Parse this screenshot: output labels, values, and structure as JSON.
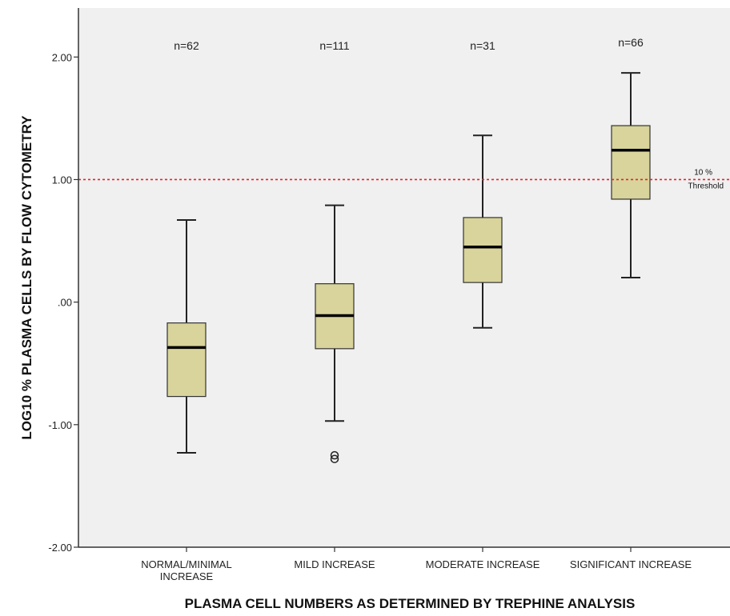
{
  "chart_data": {
    "type": "box",
    "title": "",
    "xlabel": "PLASMA CELL NUMBERS AS DETERMINED BY TREPHINE ANALYSIS",
    "ylabel": "LOG10 % PLASMA CELLS BY FLOW CYTOMETRY",
    "ylim": [
      -2.0,
      2.4
    ],
    "yticks": [
      -2.0,
      -1.0,
      0.0,
      1.0,
      2.0
    ],
    "ytick_labels": [
      "-2.00",
      "-1.00",
      ".00",
      "1.00",
      "2.00"
    ],
    "grid": false,
    "categories": [
      [
        "NORMAL/MINIMAL",
        "INCREASE"
      ],
      [
        "MILD INCREASE"
      ],
      [
        "MODERATE INCREASE"
      ],
      [
        "SIGNIFICANT INCREASE"
      ]
    ],
    "counts": [
      "n=62",
      "n=111",
      "n=31",
      "n=66"
    ],
    "boxes": [
      {
        "whisker_low": -1.23,
        "q1": -0.77,
        "median": -0.37,
        "q3": -0.17,
        "whisker_high": 0.67,
        "outliers": []
      },
      {
        "whisker_low": -0.97,
        "q1": -0.38,
        "median": -0.11,
        "q3": 0.15,
        "whisker_high": 0.79,
        "outliers": [
          -1.25,
          -1.28
        ]
      },
      {
        "whisker_low": -0.21,
        "q1": 0.16,
        "median": 0.45,
        "q3": 0.69,
        "whisker_high": 1.36,
        "outliers": []
      },
      {
        "whisker_low": 0.2,
        "q1": 0.84,
        "median": 1.24,
        "q3": 1.44,
        "whisker_high": 1.87,
        "outliers": []
      }
    ],
    "reference_line": {
      "y": 1.0,
      "label": [
        "10 %",
        "Threshold"
      ],
      "color": "#e8222a",
      "style": "dotted"
    },
    "box_color": "#d8d49b",
    "plot_background": "#f0f0f0"
  }
}
